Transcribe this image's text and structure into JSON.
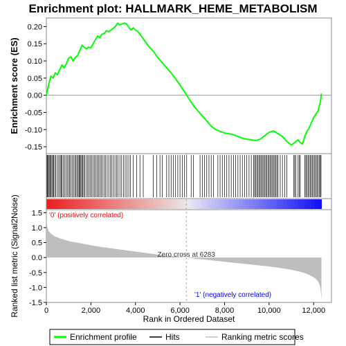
{
  "chart_data": {
    "type": "line",
    "title": "Enrichment plot: HALLMARK_HEME_METABOLISM",
    "es_panel": {
      "ylabel": "Enrichment score (ES)",
      "ylim": [
        -0.17,
        0.225
      ],
      "yticks": [
        -0.15,
        -0.1,
        -0.05,
        0.0,
        0.05,
        0.1,
        0.15,
        0.2
      ],
      "ytick_labels": [
        "-0.15",
        "-0.10",
        "-0.05",
        "0.00",
        "0.05",
        "0.10",
        "0.15",
        "0.20"
      ],
      "curve_color": "#00ff00",
      "curve": {
        "x": [
          0,
          100,
          200,
          300,
          400,
          500,
          600,
          700,
          800,
          900,
          1000,
          1100,
          1200,
          1300,
          1400,
          1500,
          1600,
          1700,
          1800,
          1900,
          2000,
          2100,
          2200,
          2300,
          2400,
          2500,
          2600,
          2700,
          2800,
          2900,
          3000,
          3100,
          3200,
          3300,
          3400,
          3500,
          3600,
          3700,
          3800,
          3900,
          4000,
          4100,
          4200,
          4400,
          4600,
          4800,
          5000,
          5200,
          5400,
          5600,
          5800,
          6000,
          6200,
          6400,
          6600,
          6800,
          7000,
          7200,
          7400,
          7600,
          7800,
          8000,
          8200,
          8400,
          8600,
          8800,
          9000,
          9200,
          9400,
          9600,
          9800,
          10000,
          10200,
          10400,
          10600,
          10800,
          11000,
          11100,
          11200,
          11300,
          11400,
          11500,
          11600,
          11700,
          11800,
          11900,
          12000,
          12100,
          12200,
          12300,
          12350
        ],
        "y": [
          0.0,
          0.03,
          0.055,
          0.05,
          0.065,
          0.06,
          0.075,
          0.088,
          0.08,
          0.092,
          0.108,
          0.112,
          0.1,
          0.11,
          0.115,
          0.13,
          0.145,
          0.14,
          0.135,
          0.14,
          0.138,
          0.15,
          0.162,
          0.172,
          0.168,
          0.178,
          0.18,
          0.188,
          0.185,
          0.19,
          0.195,
          0.2,
          0.21,
          0.205,
          0.208,
          0.21,
          0.208,
          0.198,
          0.19,
          0.196,
          0.19,
          0.186,
          0.178,
          0.16,
          0.142,
          0.128,
          0.11,
          0.095,
          0.08,
          0.065,
          0.048,
          0.03,
          0.01,
          -0.01,
          -0.03,
          -0.045,
          -0.06,
          -0.075,
          -0.09,
          -0.1,
          -0.105,
          -0.11,
          -0.112,
          -0.115,
          -0.12,
          -0.125,
          -0.128,
          -0.13,
          -0.132,
          -0.128,
          -0.118,
          -0.108,
          -0.104,
          -0.112,
          -0.12,
          -0.135,
          -0.145,
          -0.14,
          -0.135,
          -0.13,
          -0.138,
          -0.142,
          -0.12,
          -0.105,
          -0.095,
          -0.08,
          -0.065,
          -0.055,
          -0.045,
          -0.02,
          0.005
        ]
      }
    },
    "hits": {
      "positions": [
        30,
        60,
        90,
        130,
        170,
        210,
        250,
        290,
        330,
        380,
        430,
        500,
        560,
        620,
        660,
        700,
        760,
        820,
        880,
        940,
        1000,
        1050,
        1100,
        1160,
        1220,
        1280,
        1330,
        1380,
        1430,
        1470,
        1510,
        1550,
        1590,
        1630,
        1680,
        1730,
        1800,
        1860,
        1920,
        1980,
        2040,
        2100,
        2160,
        2220,
        2280,
        2340,
        2400,
        2460,
        2520,
        2590,
        2660,
        2730,
        2800,
        2870,
        2940,
        3010,
        3080,
        3150,
        3220,
        3300,
        3380,
        3460,
        3540,
        3620,
        3700,
        3780,
        3900,
        4050,
        4200,
        4350,
        4800,
        4950,
        5100,
        5200,
        5400,
        5500,
        5600,
        5700,
        5800,
        5900,
        6000,
        6100,
        6200,
        6300,
        6500,
        6600,
        6900,
        7000,
        7100,
        7200,
        7300,
        7400,
        7500,
        7700,
        7800,
        7900,
        8000,
        8100,
        8200,
        8300,
        8400,
        8500,
        8600,
        8700,
        8800,
        8900,
        9000,
        9100,
        9200,
        9300,
        9350,
        9400,
        9450,
        9500,
        9550,
        9600,
        9650,
        9700,
        9750,
        9800,
        9850,
        9900,
        9950,
        10000,
        10050,
        10100,
        10150,
        10200,
        10250,
        10300,
        10350,
        10400,
        10500,
        10600,
        10700,
        10800,
        11100,
        11150,
        11200,
        11300,
        11350,
        11400,
        11600,
        11650,
        11700,
        11750,
        11800,
        11850,
        11900,
        11950,
        12000,
        12050,
        12100,
        12150,
        12200,
        12250,
        12300,
        12330
      ],
      "color": "#000000"
    },
    "ranking": {
      "ylabel": "Ranked list metric (Signal2Noise)",
      "ylim": [
        -1.5,
        1.6
      ],
      "yticks": [
        -1.5,
        -1.0,
        -0.5,
        0.0,
        0.5,
        1.0,
        1.5
      ],
      "ytick_labels": [
        "-1.5",
        "-1.0",
        "-0.5",
        "0.0",
        "0.5",
        "1.0",
        "1.5"
      ],
      "curve": {
        "x": [
          0,
          20,
          50,
          100,
          200,
          400,
          700,
          1000,
          1500,
          2000,
          2500,
          3000,
          3500,
          4000,
          4500,
          5000,
          5500,
          6000,
          6283,
          6500,
          7000,
          7500,
          8000,
          8500,
          9000,
          9500,
          10000,
          10500,
          11000,
          11300,
          11600,
          11800,
          12000,
          12100,
          12200,
          12260,
          12300,
          12330,
          12350
        ],
        "y": [
          1.35,
          1.15,
          1.0,
          0.9,
          0.8,
          0.7,
          0.62,
          0.55,
          0.48,
          0.41,
          0.35,
          0.3,
          0.25,
          0.2,
          0.15,
          0.1,
          0.06,
          0.02,
          0.0,
          -0.02,
          -0.06,
          -0.1,
          -0.14,
          -0.18,
          -0.22,
          -0.26,
          -0.3,
          -0.35,
          -0.41,
          -0.46,
          -0.52,
          -0.58,
          -0.66,
          -0.72,
          -0.8,
          -0.9,
          -1.0,
          -1.2,
          -1.42
        ]
      },
      "fill_color": "#bebebe",
      "zero_cross_label": "Zero cross at 6283",
      "zero_cross": 6283,
      "pos_label": "'0' (positively correlated)",
      "neg_label": "'1' (negatively correlated)",
      "pos_label_color": "#ff0000",
      "neg_label_color": "#0000ff"
    },
    "xaxis": {
      "xlabel": "Rank in Ordered Dataset",
      "xlim": [
        0,
        12800
      ],
      "xticks": [
        0,
        2000,
        4000,
        6000,
        8000,
        10000,
        12000
      ],
      "xtick_labels": [
        "0",
        "2,000",
        "4,000",
        "6,000",
        "8,000",
        "10,000",
        "12,000"
      ],
      "n_genes": 12350
    },
    "legend": {
      "placement": "bottom",
      "items": [
        {
          "label": "Enrichment profile",
          "color": "#00ff00"
        },
        {
          "label": "Hits",
          "color": "#000000"
        },
        {
          "label": "Ranking metric scores",
          "color": "#bebebe"
        }
      ]
    }
  }
}
